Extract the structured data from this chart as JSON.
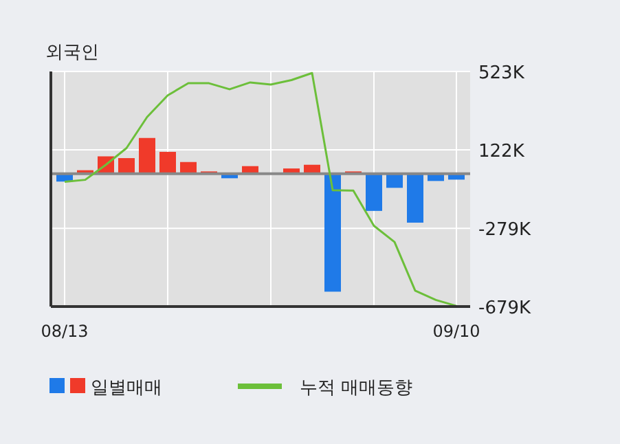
{
  "chart_data": {
    "type": "bar",
    "title": "외국인",
    "categories": [
      "08/13",
      null,
      null,
      null,
      null,
      null,
      null,
      null,
      null,
      null,
      null,
      null,
      null,
      null,
      null,
      null,
      null,
      null,
      null,
      "09/10"
    ],
    "series": [
      {
        "name": "일별매매",
        "colors": [
          "#1f7ae8",
          "#f03a2a",
          "#f03a2a",
          "#f03a2a",
          "#f03a2a",
          "#f03a2a",
          "#f03a2a",
          "#f03a2a",
          "#1f7ae8",
          "#f03a2a",
          "#f03a2a",
          "#f03a2a",
          "#f03a2a",
          "#1f7ae8",
          "#f03a2a",
          "#1f7ae8",
          "#1f7ae8",
          "#1f7ae8",
          "#1f7ae8",
          "#1f7ae8"
        ],
        "values": [
          -40,
          18,
          89,
          80,
          183,
          112,
          60,
          12,
          -23,
          39,
          0,
          27,
          46,
          -603,
          12,
          -190,
          -72,
          -250,
          -37,
          -30
        ]
      },
      {
        "name": "누적 매매동향",
        "type": "line",
        "color": "#6cbf3a",
        "values": [
          -41,
          -31,
          46,
          131,
          290,
          401,
          463,
          463,
          432,
          467,
          456,
          479,
          515,
          -84,
          -86,
          -266,
          -349,
          -598,
          -645,
          -676
        ]
      }
    ],
    "ylim": [
      -679,
      523
    ],
    "yticks": [
      {
        "value": 523,
        "label": "523K"
      },
      {
        "value": 122,
        "label": "122K"
      },
      {
        "value": -279,
        "label": "-279K"
      },
      {
        "value": -679,
        "label": "-679K"
      }
    ],
    "grid": true,
    "legend": "bottom"
  }
}
